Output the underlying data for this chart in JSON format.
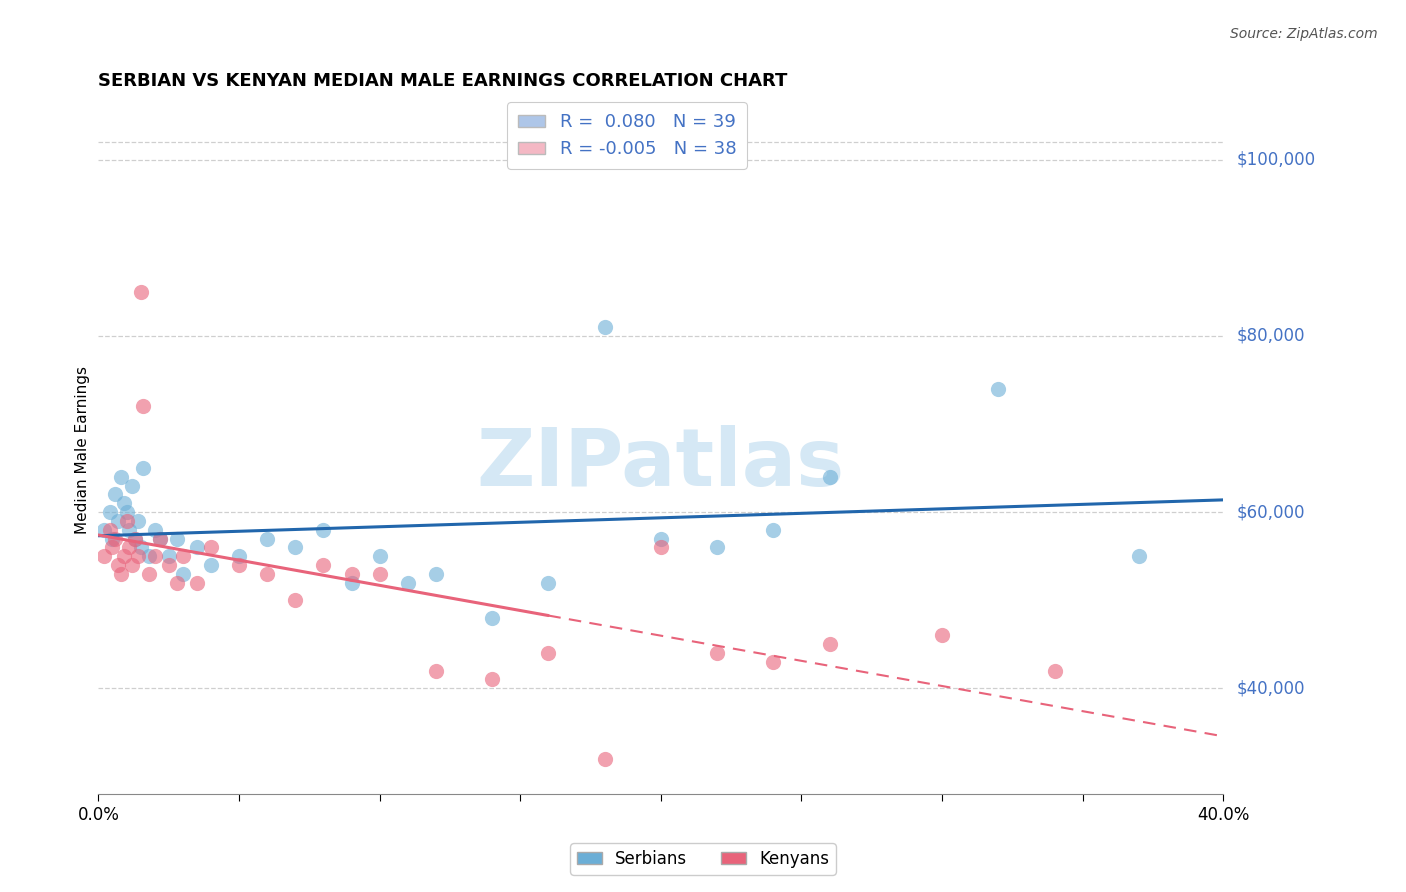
{
  "title": "SERBIAN VS KENYAN MEDIAN MALE EARNINGS CORRELATION CHART",
  "source": "Source: ZipAtlas.com",
  "ylabel": "Median Male Earnings",
  "xlim": [
    0.0,
    0.4
  ],
  "ylim": [
    28000,
    106000
  ],
  "xticks": [
    0.0,
    0.05,
    0.1,
    0.15,
    0.2,
    0.25,
    0.3,
    0.35,
    0.4
  ],
  "xtick_labels": [
    "0.0%",
    "",
    "",
    "",
    "",
    "",
    "",
    "",
    "40.0%"
  ],
  "ytick_positions": [
    40000,
    60000,
    80000,
    100000
  ],
  "ytick_labels": [
    "$40,000",
    "$60,000",
    "$80,000",
    "$100,000"
  ],
  "watermark": "ZIPatlas",
  "legend_entries": [
    {
      "label": "R =  0.080   N = 39",
      "color": "#aec6e8"
    },
    {
      "label": "R = -0.005   N = 38",
      "color": "#f4b8c4"
    }
  ],
  "serbian_color": "#6baed6",
  "kenyan_color": "#e8637a",
  "serbian_line_color": "#2166ac",
  "kenyan_line_color": "#e8637a",
  "grid_color": "#bbbbbb",
  "background_color": "#ffffff",
  "serbian_x": [
    0.002,
    0.004,
    0.005,
    0.006,
    0.007,
    0.008,
    0.009,
    0.01,
    0.011,
    0.012,
    0.013,
    0.014,
    0.015,
    0.016,
    0.018,
    0.02,
    0.022,
    0.025,
    0.028,
    0.03,
    0.035,
    0.04,
    0.05,
    0.06,
    0.07,
    0.08,
    0.09,
    0.1,
    0.11,
    0.12,
    0.14,
    0.16,
    0.18,
    0.2,
    0.22,
    0.24,
    0.26,
    0.32,
    0.37
  ],
  "serbian_y": [
    58000,
    60000,
    57000,
    62000,
    59000,
    64000,
    61000,
    60000,
    58000,
    63000,
    57000,
    59000,
    56000,
    65000,
    55000,
    58000,
    57000,
    55000,
    57000,
    53000,
    56000,
    54000,
    55000,
    57000,
    56000,
    58000,
    52000,
    55000,
    52000,
    53000,
    48000,
    52000,
    81000,
    57000,
    56000,
    58000,
    64000,
    74000,
    55000
  ],
  "kenyan_x": [
    0.002,
    0.004,
    0.005,
    0.006,
    0.007,
    0.008,
    0.009,
    0.01,
    0.011,
    0.012,
    0.013,
    0.014,
    0.015,
    0.016,
    0.018,
    0.02,
    0.022,
    0.025,
    0.028,
    0.03,
    0.035,
    0.04,
    0.05,
    0.06,
    0.07,
    0.08,
    0.09,
    0.1,
    0.12,
    0.14,
    0.16,
    0.18,
    0.2,
    0.22,
    0.24,
    0.26,
    0.3,
    0.34
  ],
  "kenyan_y": [
    55000,
    58000,
    56000,
    57000,
    54000,
    53000,
    55000,
    59000,
    56000,
    54000,
    57000,
    55000,
    85000,
    72000,
    53000,
    55000,
    57000,
    54000,
    52000,
    55000,
    52000,
    56000,
    54000,
    53000,
    50000,
    54000,
    53000,
    53000,
    42000,
    41000,
    44000,
    32000,
    56000,
    44000,
    43000,
    45000,
    46000,
    42000
  ]
}
